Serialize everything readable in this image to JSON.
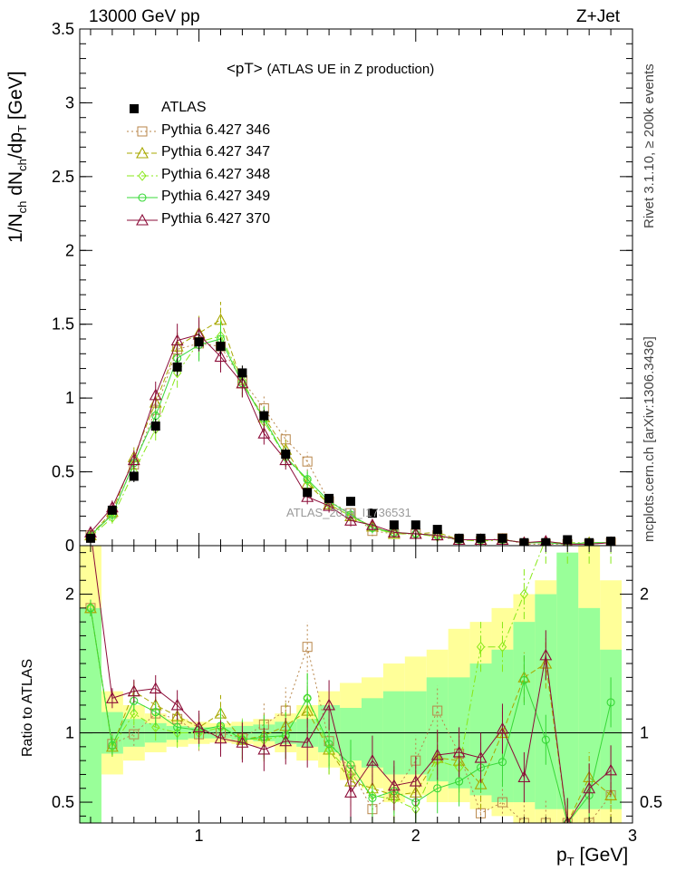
{
  "header": {
    "energy_label": "13000 GeV pp",
    "process_label": "Z+Jet",
    "title_main": "<pT>",
    "title_sub": "(ATLAS UE in Z production)"
  },
  "side_labels": {
    "rivet": "Rivet 3.1.10, ≥ 200k events",
    "mcplots": "mcplots.cern.ch [arXiv:1306.3436]"
  },
  "watermark": "ATLAS_2019_I1736531",
  "axes": {
    "ylabel_main": "1/N_ch dN_ch/dp_T [GeV]",
    "ylabel_ratio": "Ratio to ATLAS",
    "xlabel": "p_T [GeV]",
    "x_range": [
      0.45,
      3.0
    ],
    "y_range_main": [
      0,
      3.5
    ],
    "y_range_ratio": [
      0.35,
      2.35
    ],
    "x_ticks": [
      "1",
      "2",
      "3"
    ],
    "y_ticks_main": [
      "0",
      "0.5",
      "1",
      "1.5",
      "2",
      "2.5",
      "3",
      "3.5"
    ],
    "y_ticks_ratio": [
      "0.5",
      "1",
      "2"
    ]
  },
  "legend": [
    {
      "name": "ATLAS",
      "color": "#000000"
    },
    {
      "name": "Pythia 6.427 346",
      "color": "#b8864a"
    },
    {
      "name": "Pythia 6.427 347",
      "color": "#a8a800"
    },
    {
      "name": "Pythia 6.427 348",
      "color": "#88e818"
    },
    {
      "name": "Pythia 6.427 349",
      "color": "#38d838"
    },
    {
      "name": "Pythia 6.427 370",
      "color": "#8b0c38"
    }
  ],
  "chart_data": {
    "type": "line",
    "x": [
      0.5,
      0.6,
      0.7,
      0.8,
      0.9,
      1.0,
      1.1,
      1.2,
      1.3,
      1.4,
      1.5,
      1.6,
      1.7,
      1.8,
      1.9,
      2.0,
      2.1,
      2.2,
      2.3,
      2.4,
      2.5,
      2.6,
      2.7,
      2.8,
      2.9
    ],
    "band_bins": [
      0.45,
      0.55,
      0.65,
      0.75,
      0.85,
      0.95,
      1.05,
      1.15,
      1.25,
      1.35,
      1.45,
      1.55,
      1.65,
      1.75,
      1.85,
      1.95,
      2.05,
      2.15,
      2.25,
      2.35,
      2.45,
      2.55,
      2.65,
      2.75,
      2.85,
      2.95
    ],
    "band_yellow": [
      [
        0.3,
        2.35
      ],
      [
        0.7,
        1.3
      ],
      [
        0.8,
        1.2
      ],
      [
        0.86,
        1.14
      ],
      [
        0.9,
        1.1
      ],
      [
        0.92,
        1.08
      ],
      [
        0.93,
        1.07
      ],
      [
        0.92,
        1.08
      ],
      [
        0.9,
        1.1
      ],
      [
        0.86,
        1.14
      ],
      [
        0.8,
        1.2
      ],
      [
        0.75,
        1.3
      ],
      [
        0.66,
        1.36
      ],
      [
        0.6,
        1.4
      ],
      [
        0.5,
        1.5
      ],
      [
        0.55,
        1.55
      ],
      [
        0.5,
        1.6
      ],
      [
        0.5,
        1.75
      ],
      [
        0.45,
        1.8
      ],
      [
        0.4,
        1.9
      ],
      [
        0.35,
        2.0
      ],
      [
        0.3,
        2.1
      ],
      [
        0.3,
        2.2
      ],
      [
        0.3,
        2.35
      ],
      [
        0.3,
        2.1
      ]
    ],
    "band_green": [
      [
        0.35,
        1.9
      ],
      [
        0.85,
        1.15
      ],
      [
        0.9,
        1.1
      ],
      [
        0.93,
        1.07
      ],
      [
        0.95,
        1.05
      ],
      [
        0.96,
        1.04
      ],
      [
        0.96,
        1.04
      ],
      [
        0.95,
        1.05
      ],
      [
        0.94,
        1.06
      ],
      [
        0.92,
        1.08
      ],
      [
        0.9,
        1.1
      ],
      [
        0.86,
        1.2
      ],
      [
        0.8,
        1.18
      ],
      [
        0.75,
        1.25
      ],
      [
        0.7,
        1.3
      ],
      [
        0.7,
        1.3
      ],
      [
        0.65,
        1.4
      ],
      [
        0.6,
        1.4
      ],
      [
        0.55,
        1.5
      ],
      [
        0.5,
        1.6
      ],
      [
        0.5,
        1.8
      ],
      [
        0.45,
        2.0
      ],
      [
        0.45,
        2.3
      ],
      [
        0.45,
        1.9
      ],
      [
        0.45,
        1.6
      ]
    ],
    "data": {
      "name": "ATLAS",
      "values": [
        0.05,
        0.24,
        0.47,
        0.81,
        1.21,
        1.38,
        1.35,
        1.17,
        0.88,
        0.62,
        0.36,
        0.32,
        0.3,
        0.22,
        0.14,
        0.14,
        0.11,
        0.05,
        0.05,
        0.05,
        0.02,
        0.02,
        0.04,
        0.02,
        0.03
      ],
      "errors": [
        0.02,
        0.03,
        0.04,
        0.05,
        0.06,
        0.06,
        0.06,
        0.05,
        0.04,
        0.04,
        0.03,
        0.03,
        0.03,
        0.02,
        0.02,
        0.02,
        0.02,
        0.01,
        0.01,
        0.01,
        0.01,
        0.01,
        0.01,
        0.01,
        0.01
      ]
    },
    "series": [
      {
        "name": "Pythia 6.427 346",
        "color": "#b8864a",
        "marker": "square",
        "dash": "2,3",
        "values": [
          0.07,
          0.22,
          0.55,
          0.92,
          1.33,
          1.37,
          1.35,
          1.12,
          0.93,
          0.72,
          0.57,
          0.3,
          0.22,
          0.1,
          0.08,
          0.08,
          0.07,
          0.04,
          0.03,
          0.05,
          0.01,
          0.01,
          0.01,
          0.01,
          0.02
        ],
        "ratio": [
          1.9,
          0.92,
          0.99,
          1.14,
          1.1,
          0.99,
          1.0,
          0.96,
          1.06,
          1.16,
          1.62,
          0.94,
          0.73,
          0.45,
          0.57,
          0.8,
          1.16,
          0.85,
          0.42,
          0.5,
          0.35,
          0.35,
          0.35,
          0.35,
          0.55
        ]
      },
      {
        "name": "Pythia 6.427 347",
        "color": "#a8a800",
        "marker": "triangle",
        "dash": "6,3",
        "values": [
          0.07,
          0.23,
          0.6,
          0.97,
          1.35,
          1.44,
          1.53,
          1.1,
          0.87,
          0.65,
          0.42,
          0.28,
          0.2,
          0.13,
          0.08,
          0.08,
          0.09,
          0.04,
          0.04,
          0.04,
          0.02,
          0.02,
          0.01,
          0.02,
          0.02
        ],
        "ratio": [
          1.9,
          0.9,
          1.3,
          1.2,
          1.12,
          1.04,
          1.14,
          0.95,
          0.98,
          1.05,
          1.16,
          0.88,
          0.65,
          0.6,
          0.55,
          0.57,
          0.82,
          0.8,
          0.63,
          1.0,
          1.4,
          1.5,
          0.35,
          0.68,
          0.55
        ]
      },
      {
        "name": "Pythia 6.427 348",
        "color": "#88e818",
        "marker": "diamond",
        "dash": "8,3,2,3",
        "values": [
          0.06,
          0.19,
          0.5,
          0.79,
          1.17,
          1.38,
          1.42,
          1.12,
          0.84,
          0.6,
          0.44,
          0.28,
          0.2,
          0.12,
          0.08,
          0.08,
          0.06,
          0.04,
          0.03,
          0.04,
          0.02,
          0.02,
          0.02,
          0.02,
          0.02
        ],
        "ratio": [
          1.9,
          0.9,
          1.14,
          1.04,
          1.0,
          1.0,
          1.04,
          0.96,
          0.95,
          0.98,
          1.25,
          0.88,
          0.7,
          0.55,
          0.52,
          0.45,
          0.8,
          0.75,
          1.62,
          1.62,
          2.0,
          2.4,
          2.4,
          2.4,
          2.4
        ]
      },
      {
        "name": "Pythia 6.427 349",
        "color": "#38d838",
        "marker": "circle",
        "dash": "",
        "values": [
          0.07,
          0.21,
          0.56,
          0.88,
          1.27,
          1.36,
          1.4,
          1.1,
          0.86,
          0.6,
          0.45,
          0.3,
          0.21,
          0.12,
          0.09,
          0.08,
          0.07,
          0.04,
          0.04,
          0.04,
          0.02,
          0.02,
          0.01,
          0.02,
          0.02
        ],
        "ratio": [
          1.9,
          0.91,
          1.23,
          1.15,
          1.04,
          1.02,
          1.05,
          0.95,
          0.97,
          0.98,
          1.25,
          0.92,
          0.77,
          0.53,
          0.58,
          0.5,
          0.6,
          0.65,
          0.75,
          0.79,
          1.38,
          0.95,
          0.35,
          0.55,
          1.22
        ]
      },
      {
        "name": "Pythia 6.427 370",
        "color": "#8b0c38",
        "marker": "triangle-open",
        "dash": "",
        "values": [
          0.09,
          0.26,
          0.58,
          1.02,
          1.39,
          1.43,
          1.28,
          1.1,
          0.76,
          0.58,
          0.33,
          0.27,
          0.17,
          0.14,
          0.09,
          0.08,
          0.07,
          0.04,
          0.04,
          0.04,
          0.02,
          0.03,
          0.01,
          0.01,
          0.02
        ],
        "ratio": [
          2.45,
          1.25,
          1.3,
          1.32,
          1.2,
          1.04,
          0.96,
          0.93,
          0.88,
          0.94,
          0.93,
          1.2,
          0.57,
          0.8,
          0.62,
          0.65,
          0.84,
          0.86,
          0.82,
          1.03,
          0.68,
          1.56,
          0.35,
          0.6,
          0.73
        ]
      }
    ]
  }
}
